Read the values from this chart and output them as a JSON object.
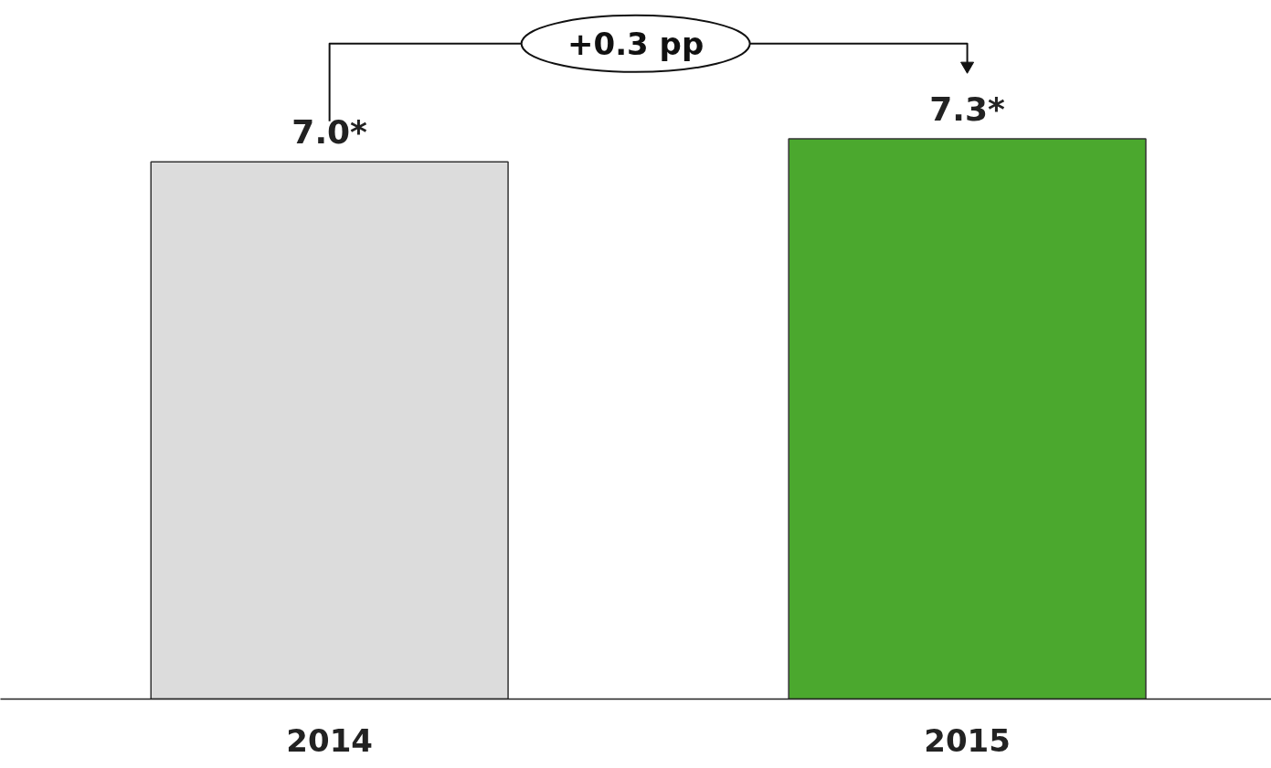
{
  "chart_data": {
    "type": "bar",
    "categories": [
      "2014",
      "2015"
    ],
    "values": [
      7.0,
      7.3
    ],
    "colors": [
      "#dcdcdc",
      "#4ba82e"
    ],
    "value_labels": [
      "7.0*",
      "7.3*"
    ],
    "annotations": [
      "+0.3 pp"
    ],
    "grid": false
  }
}
